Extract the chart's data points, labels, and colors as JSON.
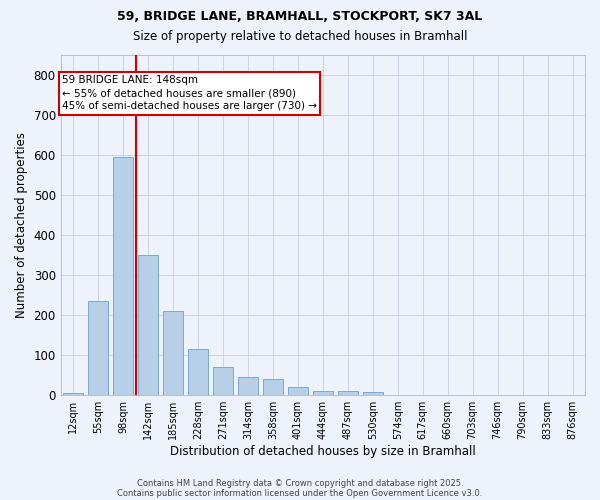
{
  "title1": "59, BRIDGE LANE, BRAMHALL, STOCKPORT, SK7 3AL",
  "title2": "Size of property relative to detached houses in Bramhall",
  "xlabel": "Distribution of detached houses by size in Bramhall",
  "ylabel": "Number of detached properties",
  "categories": [
    "12sqm",
    "55sqm",
    "98sqm",
    "142sqm",
    "185sqm",
    "228sqm",
    "271sqm",
    "314sqm",
    "358sqm",
    "401sqm",
    "444sqm",
    "487sqm",
    "530sqm",
    "574sqm",
    "617sqm",
    "660sqm",
    "703sqm",
    "746sqm",
    "790sqm",
    "833sqm",
    "876sqm"
  ],
  "values": [
    5,
    235,
    595,
    350,
    210,
    115,
    70,
    45,
    40,
    20,
    10,
    10,
    8,
    0,
    0,
    0,
    0,
    0,
    0,
    0,
    0
  ],
  "bar_color": "#b8cfe8",
  "bar_edge_color": "#7aaad0",
  "red_line_x": 2.5,
  "red_line_color": "#cc0000",
  "ylim": [
    0,
    850
  ],
  "yticks": [
    0,
    100,
    200,
    300,
    400,
    500,
    600,
    700,
    800
  ],
  "annotation_text": "59 BRIDGE LANE: 148sqm\n← 55% of detached houses are smaller (890)\n45% of semi-detached houses are larger (730) →",
  "annotation_box_facecolor": "#ffffff",
  "annotation_border_color": "#cc0000",
  "footnote1": "Contains HM Land Registry data © Crown copyright and database right 2025.",
  "footnote2": "Contains public sector information licensed under the Open Government Licence v3.0.",
  "bg_color": "#eef2fb",
  "plot_bg_color": "#eef2fb",
  "grid_color": "#c8cfe0"
}
